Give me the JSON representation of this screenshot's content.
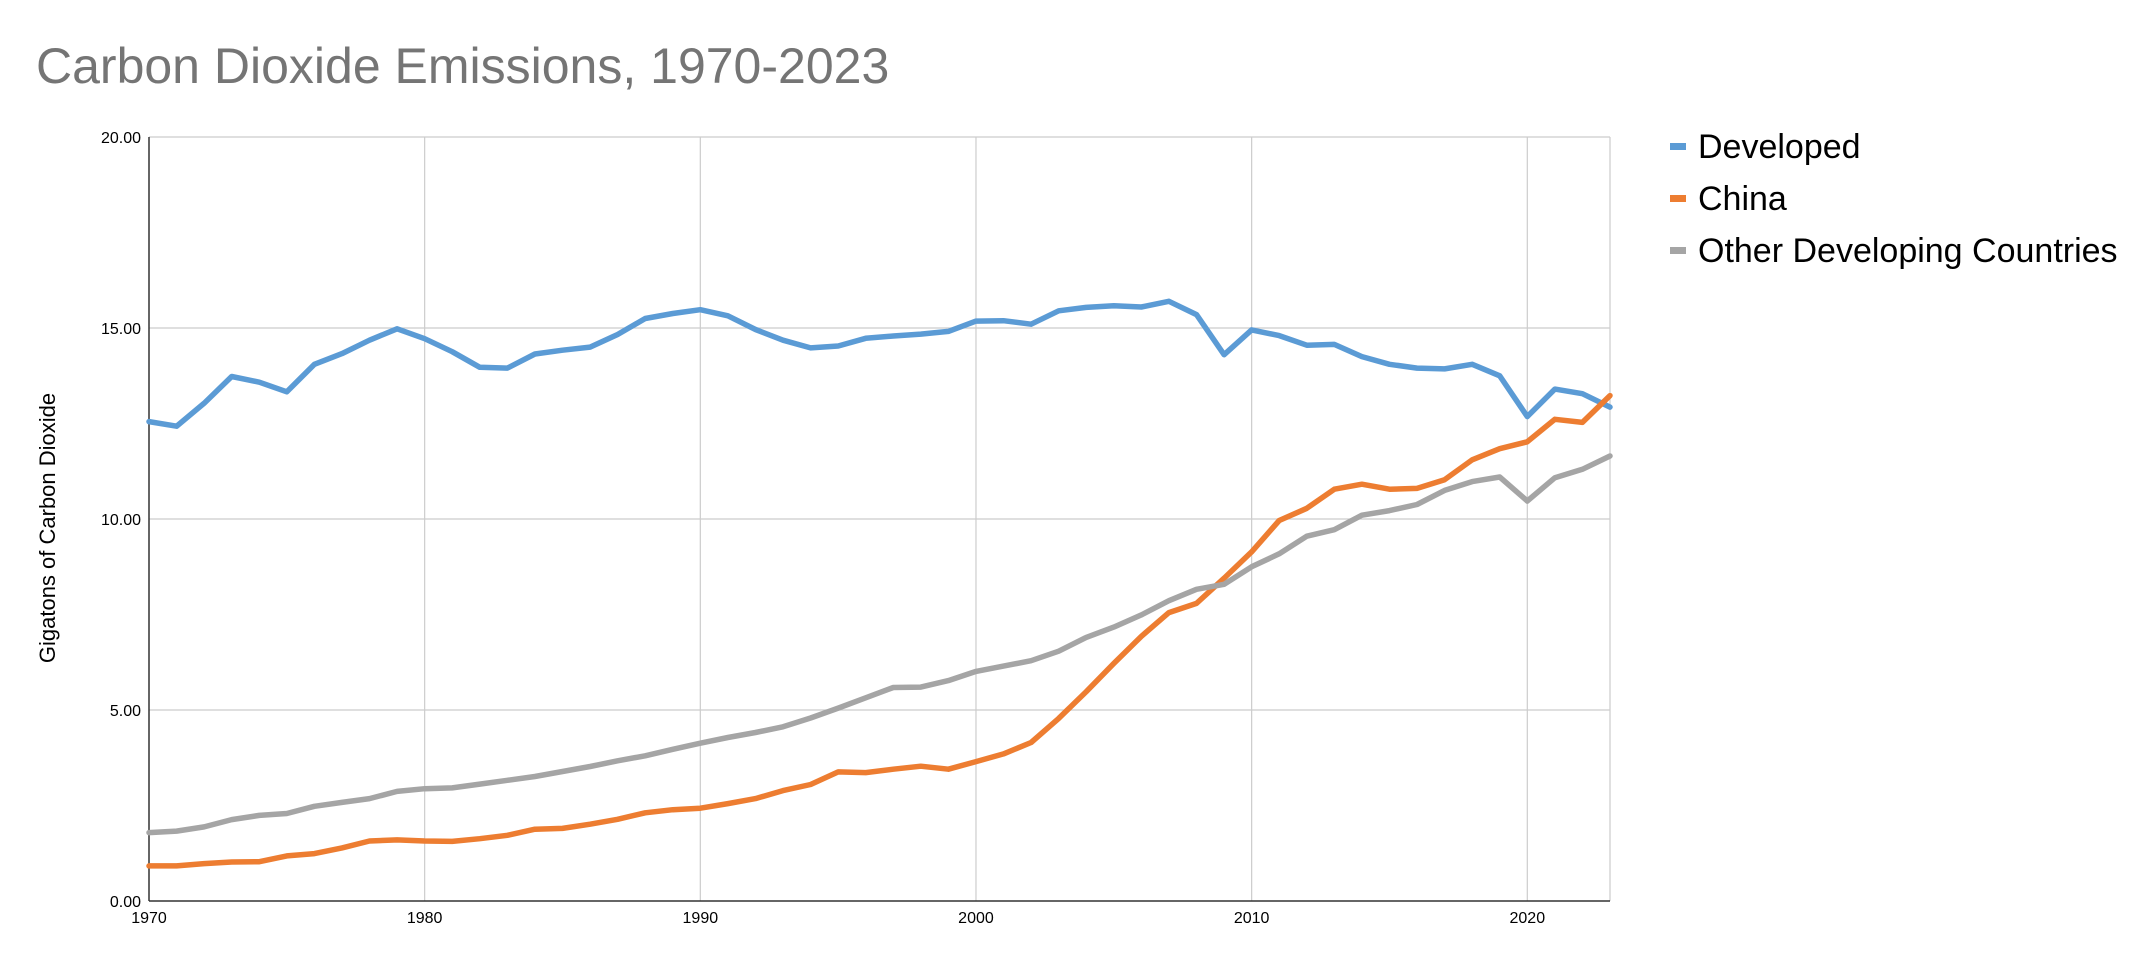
{
  "chart_data": {
    "type": "line",
    "title": "Carbon Dioxide Emissions, 1970-2023",
    "xlabel": "",
    "ylabel": "Gigatons of Carbon Dioxide",
    "xlim": [
      1970,
      2023
    ],
    "ylim": [
      0,
      20
    ],
    "x_ticks": [
      1970,
      1980,
      1990,
      2000,
      2010,
      2020
    ],
    "x_tick_labels": [
      "1970",
      "1980",
      "1990",
      "2000",
      "2010",
      "2020"
    ],
    "y_ticks": [
      0,
      5,
      10,
      15,
      20
    ],
    "y_tick_labels": [
      "0.00",
      "5.00",
      "10.00",
      "15.00",
      "20.00"
    ],
    "grid": true,
    "legend_position": "top-right",
    "x": [
      1970,
      1971,
      1972,
      1973,
      1974,
      1975,
      1976,
      1977,
      1978,
      1979,
      1980,
      1981,
      1982,
      1983,
      1984,
      1985,
      1986,
      1987,
      1988,
      1989,
      1990,
      1991,
      1992,
      1993,
      1994,
      1995,
      1996,
      1997,
      1998,
      1999,
      2000,
      2001,
      2002,
      2003,
      2004,
      2005,
      2006,
      2007,
      2008,
      2009,
      2010,
      2011,
      2012,
      2013,
      2014,
      2015,
      2016,
      2017,
      2018,
      2019,
      2020,
      2021,
      2022,
      2023
    ],
    "series": [
      {
        "name": "Developed",
        "color": "#5b9bd5",
        "values": [
          12.55,
          12.43,
          13.03,
          13.73,
          13.58,
          13.33,
          14.05,
          14.33,
          14.68,
          14.98,
          14.72,
          14.38,
          13.97,
          13.95,
          14.32,
          14.42,
          14.5,
          14.83,
          15.25,
          15.38,
          15.48,
          15.32,
          14.96,
          14.68,
          14.48,
          14.53,
          14.73,
          14.79,
          14.84,
          14.91,
          15.18,
          15.19,
          15.1,
          15.45,
          15.54,
          15.58,
          15.55,
          15.7,
          15.35,
          14.3,
          14.95,
          14.8,
          14.55,
          14.57,
          14.25,
          14.05,
          13.95,
          13.93,
          14.05,
          13.75,
          12.68,
          13.4,
          13.28,
          12.93
        ]
      },
      {
        "name": "China",
        "color": "#ed7d31",
        "values": [
          0.92,
          0.92,
          0.98,
          1.02,
          1.03,
          1.18,
          1.24,
          1.39,
          1.57,
          1.6,
          1.57,
          1.56,
          1.63,
          1.72,
          1.88,
          1.9,
          2.01,
          2.14,
          2.31,
          2.39,
          2.43,
          2.55,
          2.68,
          2.89,
          3.05,
          3.38,
          3.36,
          3.45,
          3.53,
          3.45,
          3.65,
          3.85,
          4.15,
          4.78,
          5.48,
          6.22,
          6.93,
          7.55,
          7.79,
          8.45,
          9.14,
          9.96,
          10.28,
          10.78,
          10.91,
          10.78,
          10.8,
          11.03,
          11.55,
          11.84,
          12.02,
          12.61,
          12.53,
          13.23
        ]
      },
      {
        "name": "Other Developing Countries",
        "color": "#a5a5a5",
        "values": [
          1.79,
          1.83,
          1.94,
          2.13,
          2.24,
          2.29,
          2.48,
          2.58,
          2.68,
          2.87,
          2.94,
          2.96,
          3.06,
          3.16,
          3.26,
          3.39,
          3.52,
          3.67,
          3.8,
          3.97,
          4.13,
          4.28,
          4.41,
          4.56,
          4.79,
          5.05,
          5.32,
          5.59,
          5.6,
          5.77,
          6.01,
          6.15,
          6.29,
          6.54,
          6.9,
          7.17,
          7.49,
          7.86,
          8.16,
          8.29,
          8.75,
          9.09,
          9.55,
          9.72,
          10.1,
          10.22,
          10.38,
          10.75,
          10.98,
          11.1,
          10.47,
          11.08,
          11.3,
          11.65
        ]
      }
    ]
  }
}
